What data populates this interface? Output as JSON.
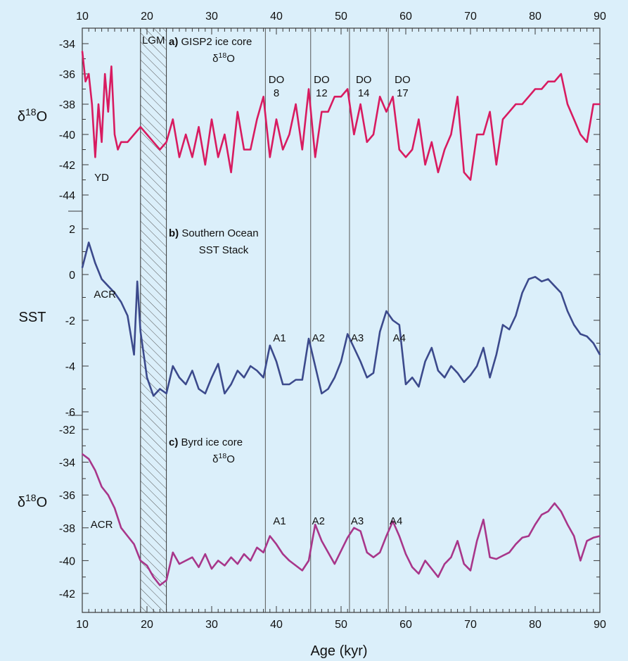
{
  "colors": {
    "background": "#dbeffa",
    "frame": "#3a3a3a",
    "gisp2": "#d81b60",
    "sst": "#3c4a8c",
    "byrd": "#a8368a",
    "event_line": "#555555"
  },
  "chart_data": [
    {
      "type": "line",
      "panel": "a",
      "label_letter": "a)",
      "label_lines": [
        "GISP2 ice core",
        "δ18O"
      ],
      "ylabel": "δ18O",
      "xlim": [
        10,
        90
      ],
      "ylim": [
        -45,
        -33
      ],
      "yticks": [
        -34,
        -36,
        -38,
        -40,
        -42,
        -44
      ],
      "series": [
        {
          "x": [
            10,
            10.5,
            11,
            11.5,
            12,
            12.5,
            13,
            13.5,
            14,
            14.5,
            15,
            15.5,
            16,
            17,
            18,
            19,
            20,
            21,
            22,
            23,
            24,
            25,
            26,
            27,
            28,
            29,
            30,
            31,
            32,
            33,
            34,
            35,
            36,
            37,
            38,
            39,
            40,
            41,
            42,
            43,
            44,
            45,
            46,
            47,
            48,
            49,
            50,
            51,
            52,
            53,
            54,
            55,
            56,
            57,
            58,
            59,
            60,
            61,
            62,
            63,
            64,
            65,
            66,
            67,
            68,
            69,
            70,
            71,
            72,
            73,
            74,
            75,
            76,
            77,
            78,
            79,
            80,
            81,
            82,
            83,
            84,
            85,
            86,
            87,
            88,
            89,
            90
          ],
          "y": [
            -34.5,
            -36.5,
            -36,
            -38,
            -41.5,
            -38,
            -40.5,
            -36,
            -38.5,
            -35.5,
            -40,
            -41,
            -40.5,
            -40.5,
            -40,
            -39.5,
            -40,
            -40.5,
            -41,
            -40.5,
            -39,
            -41.5,
            -40,
            -41.5,
            -39.5,
            -42,
            -39,
            -41.5,
            -40,
            -42.5,
            -38.5,
            -41,
            -41,
            -39,
            -37.5,
            -41.5,
            -39,
            -41,
            -40,
            -38,
            -41,
            -37,
            -41.5,
            -38.5,
            -38.5,
            -37.5,
            -37.5,
            -37,
            -40,
            -38,
            -40.5,
            -40,
            -37.5,
            -38.5,
            -37.5,
            -41,
            -41.5,
            -41,
            -39,
            -42,
            -40.5,
            -42.5,
            -41,
            -40,
            -37.5,
            -42.5,
            -43,
            -40,
            -40,
            -38.5,
            -42,
            -39,
            -38.5,
            -38,
            -38,
            -37.5,
            -37,
            -37,
            -36.5,
            -36.5,
            -36,
            -38,
            -39,
            -40,
            -40.5,
            -38,
            -38
          ]
        }
      ]
    },
    {
      "type": "line",
      "panel": "b",
      "label_letter": "b)",
      "label_lines": [
        "Southern Ocean",
        "SST Stack"
      ],
      "ylabel": "SST",
      "xlim": [
        10,
        90
      ],
      "ylim": [
        -6,
        2
      ],
      "yticks": [
        2,
        0,
        -2,
        -4,
        -6
      ],
      "series": [
        {
          "x": [
            10,
            11,
            12,
            13,
            14,
            15,
            16,
            17,
            18,
            18.5,
            19,
            20,
            21,
            22,
            23,
            24,
            25,
            26,
            27,
            28,
            29,
            30,
            31,
            32,
            33,
            34,
            35,
            36,
            37,
            38,
            39,
            40,
            41,
            42,
            43,
            44,
            45,
            46,
            47,
            48,
            49,
            50,
            51,
            52,
            53,
            54,
            55,
            56,
            57,
            58,
            59,
            60,
            61,
            62,
            63,
            64,
            65,
            66,
            67,
            68,
            69,
            70,
            71,
            72,
            73,
            74,
            75,
            76,
            77,
            78,
            79,
            80,
            81,
            82,
            83,
            84,
            85,
            86,
            87,
            88,
            89,
            90
          ],
          "y": [
            0.3,
            1.4,
            0.5,
            -0.2,
            -0.5,
            -0.8,
            -1.2,
            -1.8,
            -3.5,
            -0.3,
            -2.5,
            -4.5,
            -5.3,
            -5,
            -5.2,
            -4,
            -4.5,
            -4.8,
            -4.2,
            -5,
            -5.2,
            -4.5,
            -3.9,
            -5.2,
            -4.8,
            -4.2,
            -4.5,
            -4,
            -4.2,
            -4.5,
            -3.1,
            -3.8,
            -4.8,
            -4.8,
            -4.6,
            -4.6,
            -2.8,
            -4.0,
            -5.2,
            -5.0,
            -4.5,
            -3.8,
            -2.6,
            -3.2,
            -3.8,
            -4.5,
            -4.3,
            -2.5,
            -1.6,
            -2.0,
            -2.2,
            -4.8,
            -4.5,
            -4.9,
            -3.8,
            -3.2,
            -4.2,
            -4.5,
            -4.0,
            -4.3,
            -4.7,
            -4.4,
            -4.0,
            -3.2,
            -4.5,
            -3.5,
            -2.2,
            -2.4,
            -1.8,
            -0.8,
            -0.2,
            -0.1,
            -0.3,
            -0.2,
            -0.5,
            -0.8,
            -1.6,
            -2.2,
            -2.6,
            -2.7,
            -3.0,
            -3.5
          ]
        }
      ]
    },
    {
      "type": "line",
      "panel": "c",
      "label_letter": "c)",
      "label_lines": [
        "Byrd ice core",
        "δ18O"
      ],
      "ylabel": "δ18O",
      "xlim": [
        10,
        90
      ],
      "ylim": [
        -43,
        -32
      ],
      "yticks": [
        -32,
        -34,
        -36,
        -38,
        -40,
        -42
      ],
      "series": [
        {
          "x": [
            10,
            11,
            12,
            13,
            14,
            15,
            16,
            17,
            18,
            19,
            20,
            21,
            22,
            23,
            24,
            25,
            26,
            27,
            28,
            29,
            30,
            31,
            32,
            33,
            34,
            35,
            36,
            37,
            38,
            39,
            40,
            41,
            42,
            43,
            44,
            45,
            46,
            47,
            48,
            49,
            50,
            51,
            52,
            53,
            54,
            55,
            56,
            57,
            58,
            59,
            60,
            61,
            62,
            63,
            64,
            65,
            66,
            67,
            68,
            69,
            70,
            71,
            72,
            73,
            74,
            75,
            76,
            77,
            78,
            79,
            80,
            81,
            82,
            83,
            84,
            85,
            86,
            87,
            88,
            89,
            90
          ],
          "y": [
            -33.5,
            -33.8,
            -34.5,
            -35.5,
            -36,
            -36.8,
            -38,
            -38.5,
            -39,
            -40,
            -40.3,
            -41,
            -41.5,
            -41.2,
            -39.5,
            -40.2,
            -40,
            -39.8,
            -40.4,
            -39.6,
            -40.5,
            -40,
            -40.3,
            -39.8,
            -40.2,
            -39.6,
            -40,
            -39.2,
            -39.5,
            -38.5,
            -39,
            -39.6,
            -40,
            -40.3,
            -40.6,
            -40,
            -37.8,
            -38.8,
            -39.5,
            -40.2,
            -39.4,
            -38.6,
            -38,
            -38.2,
            -39.5,
            -39.8,
            -39.5,
            -38.5,
            -37.6,
            -38.5,
            -39.6,
            -40.4,
            -40.8,
            -40,
            -40.5,
            -41,
            -40.2,
            -39.8,
            -38.8,
            -40.2,
            -40.6,
            -38.8,
            -37.5,
            -39.8,
            -39.9,
            -39.7,
            -39.5,
            -39,
            -38.6,
            -38.5,
            -37.8,
            -37.2,
            -37,
            -36.5,
            -37,
            -37.8,
            -38.5,
            -40,
            -38.8,
            -38.6,
            -38.5
          ]
        }
      ]
    }
  ],
  "x_axis": {
    "label": "Age (kyr)",
    "ticks": [
      10,
      20,
      30,
      40,
      50,
      60,
      70,
      80,
      90
    ]
  },
  "lgm": {
    "label": "LGM",
    "x_start": 19,
    "x_end": 23
  },
  "event_lines": [
    38.3,
    45.3,
    51.3,
    57.3
  ],
  "annotations": {
    "gisp2": [
      {
        "lines": [
          "YD"
        ],
        "x": 13
      },
      {
        "lines": [
          "DO",
          "8"
        ],
        "x": 40
      },
      {
        "lines": [
          "DO",
          "12"
        ],
        "x": 47
      },
      {
        "lines": [
          "DO",
          "14"
        ],
        "x": 53.5
      },
      {
        "lines": [
          "DO",
          "17"
        ],
        "x": 59.5
      }
    ],
    "sst": [
      {
        "lines": [
          "ACR"
        ],
        "x": 13.5
      },
      {
        "lines": [
          "A1"
        ],
        "x": 40.5
      },
      {
        "lines": [
          "A2"
        ],
        "x": 46.5
      },
      {
        "lines": [
          "A3"
        ],
        "x": 52.5
      },
      {
        "lines": [
          "A4"
        ],
        "x": 59
      }
    ],
    "byrd": [
      {
        "lines": [
          "ACR"
        ],
        "x": 13
      },
      {
        "lines": [
          "A1"
        ],
        "x": 40.5
      },
      {
        "lines": [
          "A2"
        ],
        "x": 46.5
      },
      {
        "lines": [
          "A3"
        ],
        "x": 52.5
      },
      {
        "lines": [
          "A4"
        ],
        "x": 58.5
      }
    ]
  }
}
